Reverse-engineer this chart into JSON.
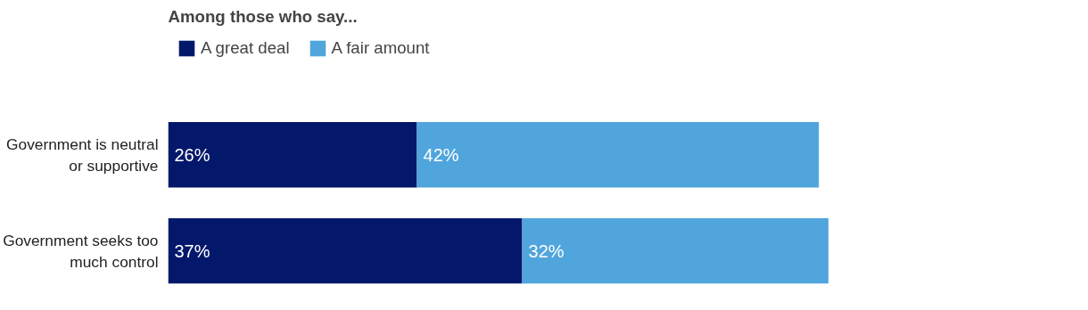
{
  "chart_data": {
    "type": "bar",
    "orientation": "horizontal",
    "stacked": true,
    "ylabel": "Among those who say...",
    "categories": [
      "Government is neutral or supportive",
      "Government seeks too much control"
    ],
    "series": [
      {
        "name": "A great deal",
        "color": "#03186b",
        "values": [
          26,
          37
        ],
        "value_labels": [
          "26%",
          "37%"
        ]
      },
      {
        "name": "A fair amount",
        "color": "#50a5dc",
        "values": [
          42,
          32
        ],
        "value_labels": [
          "42%",
          "32%"
        ]
      }
    ],
    "tick_labels": "y",
    "grid": false,
    "legend": "top left"
  }
}
